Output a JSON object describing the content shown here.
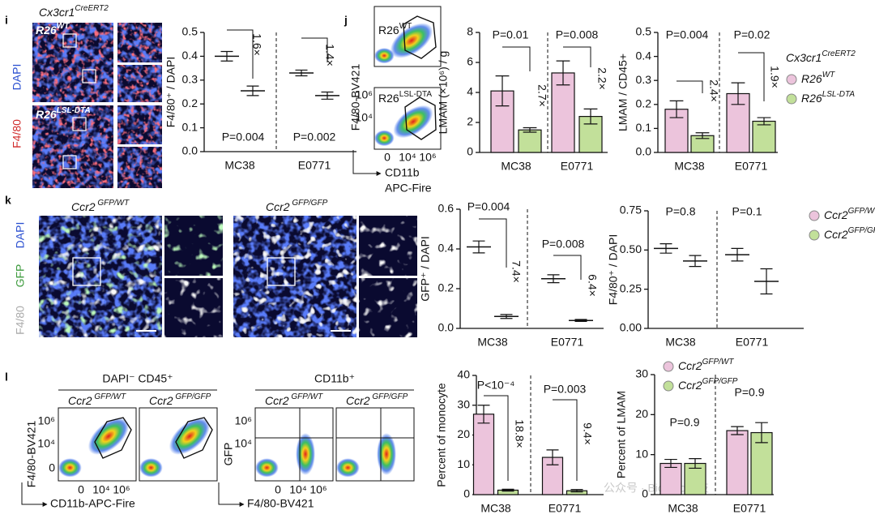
{
  "figure": {
    "i": {
      "label": "i",
      "genotype": {
        "text": "Cx3cr1",
        "sup": "CreERT2"
      },
      "images": [
        {
          "text": "R26",
          "sup": "WT"
        },
        {
          "text": "R26",
          "sup": "LSL-DTA"
        }
      ],
      "stains": [
        "DAPI",
        "F4/80"
      ]
    },
    "j": {
      "label": "j",
      "gates": [
        {
          "text": "R26",
          "sup": "WT"
        },
        {
          "text": "R26",
          "sup": "LSL-DTA"
        }
      ],
      "ylabel": "F4/80-BV421",
      "yticks": [
        "10⁶",
        "10⁴"
      ],
      "xticks": [
        "0",
        "10⁴",
        "10⁶"
      ],
      "xlabel": [
        "CD11b",
        "APC-Fire"
      ]
    },
    "k": {
      "label": "k",
      "images": [
        {
          "text": "Ccr2",
          "sup": " GFP/WT"
        },
        {
          "text": "Ccr2",
          "sup": " GFP/GFP"
        }
      ],
      "stains": [
        "DAPI",
        "GFP",
        "F4/80"
      ]
    },
    "l": {
      "label": "l",
      "plot1": {
        "title": "DAPI⁻ CD45⁺",
        "gates": [
          {
            "text": "Ccr2",
            "sup": " GFP/WT"
          },
          {
            "text": "Ccr2",
            "sup": " GFP/GFP"
          }
        ],
        "ylabel": "F4/80-BV421",
        "yticks": [
          "10⁶",
          "10⁴",
          "0"
        ],
        "xticks": [
          "0",
          "10⁴",
          "10⁶"
        ],
        "xlabel": "CD11b-APC-Fire"
      },
      "plot2": {
        "title": "CD11b⁺",
        "gates": [
          {
            "text": "Ccr2",
            "sup": " GFP/WT"
          },
          {
            "text": "Ccr2",
            "sup": " GFP/GFP"
          }
        ],
        "ylabel": "GFP",
        "yticks": [
          "10⁶",
          "10⁴"
        ],
        "xticks": [
          "0",
          "10⁴",
          "10⁶"
        ],
        "xlabel": "F4/80-BV421"
      }
    },
    "watermark": "公众号 · BioMed科技"
  },
  "chart_data": [
    {
      "type": "dot",
      "ylabel": "F4/80⁺ / DAPI",
      "categories": [
        "MC38",
        "E0771"
      ],
      "series": [
        {
          "color": "#ecc4dc",
          "values": [
            0.4,
            0.33
          ],
          "errors": [
            0.02,
            0.012
          ]
        },
        {
          "color": "#c2e09a",
          "values": [
            0.255,
            0.235
          ],
          "errors": [
            0.02,
            0.015
          ]
        }
      ],
      "ylim": [
        0,
        0.5
      ],
      "yticks": [
        {
          "value": 0,
          "label": "0.0"
        },
        0.1,
        0.2,
        0.3,
        0.4,
        0.5
      ],
      "annotations": [
        {
          "p": "P=0.004",
          "fold": "1.6×"
        },
        {
          "p": "P=0.002",
          "fold": "1.4×"
        }
      ]
    },
    {
      "type": "bar",
      "ylabel": "LMAM (×10⁶) / g",
      "categories": [
        "MC38",
        "E0771"
      ],
      "series": [
        {
          "color": "#ecc4dc",
          "values": [
            4.1,
            5.3
          ],
          "errors": [
            1.0,
            0.8
          ]
        },
        {
          "color": "#c2e09a",
          "values": [
            1.5,
            2.4
          ],
          "errors": [
            0.15,
            0.5
          ]
        }
      ],
      "ylim": [
        0,
        8
      ],
      "yticks": [
        0,
        2,
        4,
        6,
        8
      ],
      "annotations": [
        {
          "p": "P=0.01",
          "fold": "2.7×"
        },
        {
          "p": "P=0.008",
          "fold": "2.2×"
        }
      ]
    },
    {
      "type": "bar",
      "ylabel": "LMAM / CD45+",
      "categories": [
        "MC38",
        "E0771"
      ],
      "legend_title": {
        "text": "Cx3cr1",
        "sup": "CreERT2"
      },
      "series": [
        {
          "name": {
            "text": "R26",
            "sup": "WT"
          },
          "color": "#ecc4dc",
          "values": [
            0.18,
            0.245
          ],
          "errors": [
            0.035,
            0.045
          ]
        },
        {
          "name": {
            "text": "R26",
            "sup": "LSL-DTA"
          },
          "color": "#c2e09a",
          "values": [
            0.07,
            0.13
          ],
          "errors": [
            0.012,
            0.015
          ]
        }
      ],
      "ylim": [
        0,
        0.5
      ],
      "yticks": [
        {
          "value": 0,
          "label": "0.0"
        },
        0.1,
        0.2,
        0.3,
        0.4,
        0.5
      ],
      "annotations": [
        {
          "p": "P=0.004",
          "fold": "2.4×"
        },
        {
          "p": "P=0.02",
          "fold": "1.9×"
        }
      ]
    },
    {
      "type": "dot",
      "ylabel": "GFP⁺ / DAPI",
      "categories": [
        "MC38",
        "E0771"
      ],
      "series": [
        {
          "color": "#ecc4dc",
          "values": [
            0.41,
            0.25
          ],
          "errors": [
            0.03,
            0.02
          ]
        },
        {
          "color": "#c2e09a",
          "values": [
            0.06,
            0.04
          ],
          "errors": [
            0.01,
            0.005
          ]
        }
      ],
      "ylim": [
        0,
        0.6
      ],
      "yticks": [
        {
          "value": 0,
          "label": "0.0"
        },
        0.2,
        0.4,
        0.6
      ],
      "annotations": [
        {
          "p": "P=0.004",
          "fold": "7.4×"
        },
        {
          "p": "P=0.008",
          "fold": "6.4×"
        }
      ]
    },
    {
      "type": "dot",
      "ylabel": "F4/80⁺ / DAPI",
      "categories": [
        "MC38",
        "E0771"
      ],
      "series": [
        {
          "name": {
            "text": "Ccr2",
            "sup": "GFP/WT"
          },
          "color": "#ecc4dc",
          "values": [
            0.51,
            0.47
          ],
          "errors": [
            0.03,
            0.04
          ]
        },
        {
          "name": {
            "text": "Ccr2",
            "sup": "GFP/GFP"
          },
          "color": "#c2e09a",
          "values": [
            0.43,
            0.3
          ],
          "errors": [
            0.035,
            0.08
          ]
        }
      ],
      "ylim": [
        0,
        0.75
      ],
      "yticks": [
        {
          "value": 0,
          "label": "0.00"
        },
        0.25,
        {
          "value": 0.5,
          "label": "0.50"
        },
        0.75
      ],
      "annotations": [
        {
          "p": "P=0.8"
        },
        {
          "p": "P=0.1"
        }
      ]
    },
    {
      "type": "bar",
      "ylabel": "Percent of monocyte",
      "categories": [
        "MC38",
        "E0771"
      ],
      "series": [
        {
          "color": "#ecc4dc",
          "values": [
            27,
            12.5
          ],
          "errors": [
            3,
            2.5
          ]
        },
        {
          "color": "#c2e09a",
          "values": [
            1.5,
            1.3
          ],
          "errors": [
            0.3,
            0.4
          ]
        }
      ],
      "ylim": [
        0,
        40
      ],
      "yticks": [
        0,
        10,
        20,
        30,
        40
      ],
      "annotations": [
        {
          "p": "P<10⁻⁴",
          "fold": "18.8×"
        },
        {
          "p": "P=0.003",
          "fold": "9.4×"
        }
      ]
    },
    {
      "type": "bar",
      "ylabel": "Percent of LMAM",
      "categories": [
        "MC38",
        "E0771"
      ],
      "series": [
        {
          "name": {
            "text": "Ccr2",
            "sup": "GFP/WT"
          },
          "color": "#ecc4dc",
          "values": [
            7.8,
            16
          ],
          "errors": [
            1,
            1
          ]
        },
        {
          "name": {
            "text": "Ccr2",
            "sup": "GFP/GFP"
          },
          "color": "#c2e09a",
          "values": [
            7.8,
            15.5
          ],
          "errors": [
            1.2,
            2.5
          ]
        }
      ],
      "ylim": [
        0,
        30
      ],
      "yticks": [
        0,
        10,
        20,
        30
      ],
      "annotations": [
        {
          "p": "P=0.9"
        },
        {
          "p": "P=0.9"
        }
      ]
    }
  ]
}
